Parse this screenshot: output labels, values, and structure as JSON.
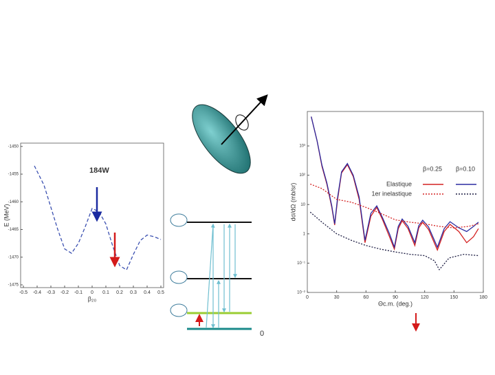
{
  "chart_data": [
    {
      "type": "line",
      "title": "184W",
      "x_label": "β₂₀",
      "y_label": "E (MeV)",
      "xlim": [
        -0.52,
        0.52
      ],
      "ylim": [
        -1475.5,
        -1449.4
      ],
      "xticks": [
        -0.5,
        -0.4,
        -0.3,
        -0.2,
        -0.1,
        0,
        0.1,
        0.2,
        0.3,
        0.4,
        0.5
      ],
      "yticks": [
        -1450,
        -1455,
        -1460,
        -1465,
        -1470,
        -1475
      ],
      "series": [
        {
          "color": "#3a4fb0",
          "line_style": "dashed",
          "x": [
            -0.42,
            -0.35,
            -0.3,
            -0.25,
            -0.2,
            -0.15,
            -0.1,
            -0.05,
            0,
            0.05,
            0.1,
            0.15,
            0.2,
            0.25,
            0.3,
            0.35,
            0.4,
            0.45,
            0.5
          ],
          "values": [
            -1453.5,
            -1457,
            -1461,
            -1465,
            -1468.5,
            -1469.3,
            -1467.5,
            -1464.5,
            -1461.2,
            -1461.8,
            -1464,
            -1468,
            -1471.5,
            -1472.3,
            -1469.5,
            -1467,
            -1466,
            -1466.3,
            -1466.8
          ]
        }
      ]
    },
    {
      "type": "line",
      "log_y": true,
      "x_label": "Θc.m. (deg.)",
      "y_label": "dσ/dΩ (mb/sr)",
      "xlim": [
        0,
        180
      ],
      "ylim": [
        0.01,
        15000
      ],
      "xticks": [
        0,
        30,
        60,
        90,
        120,
        150,
        180
      ],
      "yticks": [
        {
          "value": 1000,
          "label": "10³"
        },
        {
          "value": 100,
          "label": "10²"
        },
        10,
        1,
        {
          "value": 0.1,
          "label": "10⁻¹"
        },
        {
          "value": 0.01,
          "label": "10⁻²"
        }
      ],
      "legend": {
        "columns": [
          "β=0.25",
          "β=0.10"
        ],
        "rows": [
          "Elastique",
          "1er inelastique"
        ]
      },
      "series": [
        {
          "color": "#d42020",
          "line_style": "solid",
          "x": [
            4,
            10,
            15,
            20,
            25,
            28,
            31,
            35,
            41,
            47,
            53,
            59,
            65,
            71,
            77,
            84,
            89,
            93,
            97,
            103,
            110,
            114,
            118,
            124,
            133,
            140,
            146,
            155,
            163,
            170,
            175
          ],
          "values": [
            10000,
            1500,
            200,
            50,
            8,
            2,
            15,
            120,
            230,
            90,
            15,
            0.5,
            4,
            8,
            3,
            0.8,
            0.3,
            1.5,
            2.8,
            1.5,
            0.4,
            1.6,
            2.5,
            1.4,
            0.28,
            1.2,
            2.1,
            1.2,
            0.5,
            0.8,
            1.5
          ]
        },
        {
          "color": "#2a2aa0",
          "line_style": "solid",
          "x": [
            4,
            10,
            15,
            20,
            25,
            28,
            31,
            35,
            41,
            47,
            53,
            59,
            65,
            71,
            77,
            84,
            89,
            93,
            97,
            103,
            110,
            114,
            118,
            124,
            133,
            140,
            146,
            155,
            163,
            170,
            175
          ],
          "values": [
            10000,
            1500,
            220,
            55,
            9,
            2.2,
            18,
            130,
            250,
            100,
            18,
            0.6,
            5,
            9,
            3.5,
            1,
            0.35,
            1.8,
            3.2,
            1.8,
            0.5,
            1.9,
            2.9,
            1.7,
            0.35,
            1.5,
            2.6,
            1.6,
            1.2,
            1.8,
            2.5
          ]
        },
        {
          "color": "#d42020",
          "line_style": "dotted",
          "x": [
            3,
            15,
            30,
            45,
            60,
            75,
            90,
            105,
            120,
            135,
            150,
            165,
            175
          ],
          "values": [
            50,
            35,
            15,
            12,
            8,
            5,
            3,
            2.5,
            2.2,
            1.8,
            1.6,
            1.8,
            2.2
          ]
        },
        {
          "color": "#1a1a40",
          "line_style": "dotted",
          "x": [
            3,
            15,
            30,
            45,
            60,
            75,
            90,
            105,
            120,
            130,
            135,
            145,
            160,
            175
          ],
          "values": [
            5.5,
            2.5,
            1,
            0.6,
            0.4,
            0.3,
            0.24,
            0.2,
            0.18,
            0.12,
            0.06,
            0.15,
            0.2,
            0.18
          ]
        }
      ]
    }
  ],
  "level_scheme": {
    "ground_label": "0"
  }
}
